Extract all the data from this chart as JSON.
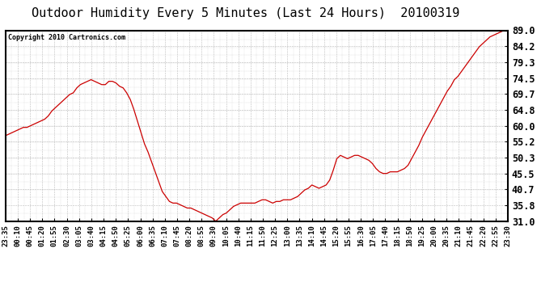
{
  "title": "Outdoor Humidity Every 5 Minutes (Last 24 Hours)  20100319",
  "copyright_text": "Copyright 2010 Cartronics.com",
  "line_color": "#cc0000",
  "background_color": "#ffffff",
  "grid_color": "#bbbbbb",
  "ylim": [
    31.0,
    89.0
  ],
  "yticks": [
    31.0,
    35.8,
    40.7,
    45.5,
    50.3,
    55.2,
    60.0,
    64.8,
    69.7,
    74.5,
    79.3,
    84.2,
    89.0
  ],
  "title_fontsize": 11,
  "ytick_fontsize": 8.5,
  "xtick_fontsize": 6.5,
  "x_labels": [
    "23:35",
    "00:10",
    "00:45",
    "01:20",
    "01:55",
    "02:30",
    "03:05",
    "03:40",
    "04:15",
    "04:50",
    "05:25",
    "06:00",
    "06:35",
    "07:10",
    "07:45",
    "08:20",
    "08:55",
    "09:30",
    "10:05",
    "10:40",
    "11:15",
    "11:50",
    "12:25",
    "13:00",
    "13:35",
    "14:10",
    "14:45",
    "15:20",
    "15:55",
    "16:30",
    "17:05",
    "17:40",
    "18:15",
    "18:50",
    "19:25",
    "20:00",
    "20:35",
    "21:10",
    "21:45",
    "22:20",
    "22:55",
    "23:30"
  ],
  "humidity_data": [
    57.0,
    57.5,
    58.0,
    58.5,
    59.0,
    59.5,
    59.5,
    60.0,
    60.5,
    61.0,
    61.5,
    62.0,
    63.0,
    64.5,
    65.5,
    66.5,
    67.5,
    68.5,
    69.5,
    70.0,
    71.5,
    72.5,
    73.0,
    73.5,
    74.0,
    73.5,
    73.0,
    72.5,
    72.5,
    73.5,
    73.5,
    73.0,
    72.0,
    71.5,
    70.0,
    68.0,
    65.0,
    61.5,
    58.0,
    54.5,
    52.0,
    49.0,
    46.0,
    43.0,
    40.0,
    38.5,
    37.0,
    36.5,
    36.5,
    36.0,
    35.5,
    35.0,
    35.0,
    34.5,
    34.0,
    33.5,
    33.0,
    32.5,
    32.0,
    31.0,
    32.0,
    33.0,
    33.5,
    34.5,
    35.5,
    36.0,
    36.5,
    36.5,
    36.5,
    36.5,
    36.5,
    37.0,
    37.5,
    37.5,
    37.0,
    36.5,
    37.0,
    37.0,
    37.5,
    37.5,
    37.5,
    38.0,
    38.5,
    39.5,
    40.5,
    41.0,
    42.0,
    41.5,
    41.0,
    41.5,
    42.0,
    43.5,
    46.5,
    50.0,
    51.0,
    50.5,
    50.0,
    50.5,
    51.0,
    51.0,
    50.5,
    50.0,
    49.5,
    48.5,
    47.0,
    46.0,
    45.5,
    45.5,
    46.0,
    46.0,
    46.0,
    46.5,
    47.0,
    48.0,
    50.0,
    52.0,
    54.0,
    56.5,
    58.5,
    60.5,
    62.5,
    64.5,
    66.5,
    68.5,
    70.5,
    72.0,
    74.0,
    75.0,
    76.5,
    78.0,
    79.5,
    81.0,
    82.5,
    84.0,
    85.0,
    86.0,
    87.0,
    87.5,
    88.0,
    88.5,
    89.0,
    89.2
  ]
}
